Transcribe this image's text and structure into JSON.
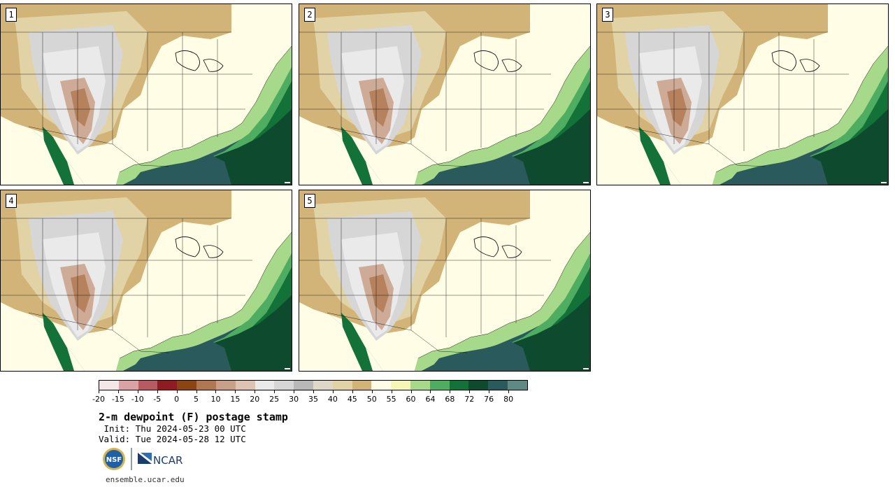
{
  "panels": [
    {
      "label": "1"
    },
    {
      "label": "2"
    },
    {
      "label": "3"
    },
    {
      "label": "4"
    },
    {
      "label": "5"
    }
  ],
  "colorbar": {
    "colors": [
      "#f3e7e7",
      "#d9a3a6",
      "#b55b61",
      "#8e1c22",
      "#8b4513",
      "#b07850",
      "#c8a088",
      "#dec3b2",
      "#eaeaea",
      "#d6d6d6",
      "#b8b8b8",
      "#ddd8c7",
      "#e2d3a6",
      "#d2b478",
      "#fffde5",
      "#f4f7b6",
      "#a6d98a",
      "#4ead60",
      "#137238",
      "#0d4a2e",
      "#2a5a5c",
      "#5f8a84"
    ],
    "tick_labels": [
      "-20",
      "-15",
      "-10",
      "-5",
      "0",
      "5",
      "10",
      "15",
      "20",
      "25",
      "30",
      "35",
      "40",
      "45",
      "50",
      "55",
      "60",
      "64",
      "68",
      "72",
      "76",
      "80"
    ]
  },
  "title": "2-m dewpoint (F) postage stamp",
  "init_text": " Init: Thu 2024-05-23 00 UTC",
  "valid_text": "Valid: Tue 2024-05-28 12 UTC",
  "logos": {
    "nsf_text": "NSF",
    "ncar_text": "NCAR"
  },
  "url": "ensemble.ucar.edu"
}
